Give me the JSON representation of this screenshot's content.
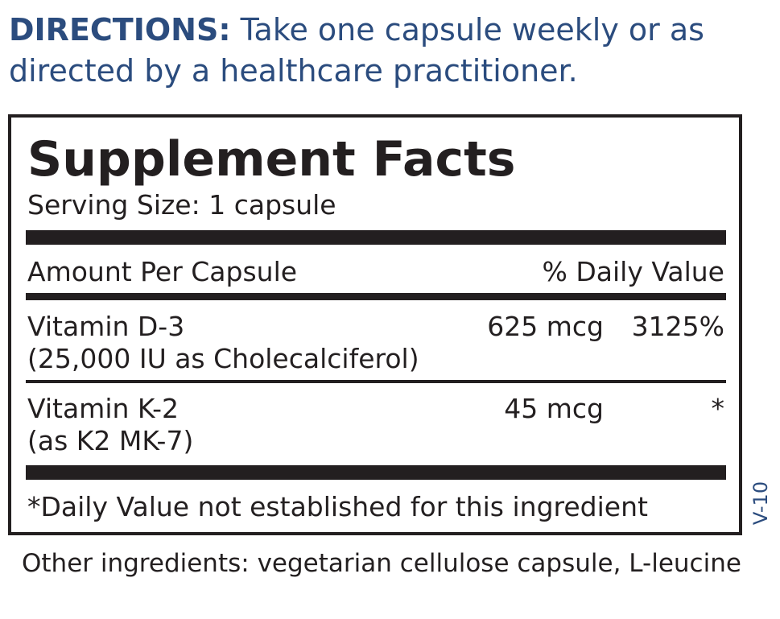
{
  "directions": {
    "label": "DIRECTIONS:",
    "text": " Take one capsule weekly or as directed by a healthcare practitioner."
  },
  "facts": {
    "title": "Supplement Facts",
    "serving_size": "Serving Size: 1 capsule",
    "header": {
      "amount": "Amount Per Capsule",
      "daily_value": "% Daily Value"
    },
    "ingredients": [
      {
        "name": "Vitamin D-3",
        "detail": "(25,000 IU as Cholecalciferol)",
        "amount": "625 mcg",
        "daily_value": "3125%"
      },
      {
        "name": "Vitamin K-2",
        "detail": "(as K2 MK-7)",
        "amount": "45 mcg",
        "daily_value": "*"
      }
    ],
    "footnote": "*Daily Value not established for this ingredient"
  },
  "version_code": "V-10",
  "other_ingredients": "Other ingredients: vegetarian cellulose capsule, L-leucine",
  "colors": {
    "directions_text": "#2b4c7e",
    "label_text": "#231f20"
  }
}
